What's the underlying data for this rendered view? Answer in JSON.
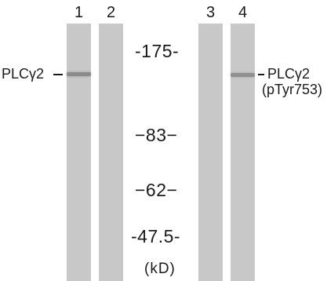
{
  "lanes": [
    {
      "number": "1",
      "band_intensity": 0.55
    },
    {
      "number": "2",
      "band_intensity": 0
    },
    {
      "number": "3",
      "band_intensity": 0
    },
    {
      "number": "4",
      "band_intensity": 0.5
    }
  ],
  "markers": [
    "-175-",
    "−83−",
    "−62−",
    "-47.5-"
  ],
  "unit": "(kD)",
  "left_label": "PLCγ2",
  "right_label": {
    "line1": "PLCγ2",
    "line2": "(pTyr753)"
  },
  "colors": {
    "lane_bg": "#c8c8c8",
    "band": "#5a5a5a",
    "text": "#1a1a1a"
  }
}
